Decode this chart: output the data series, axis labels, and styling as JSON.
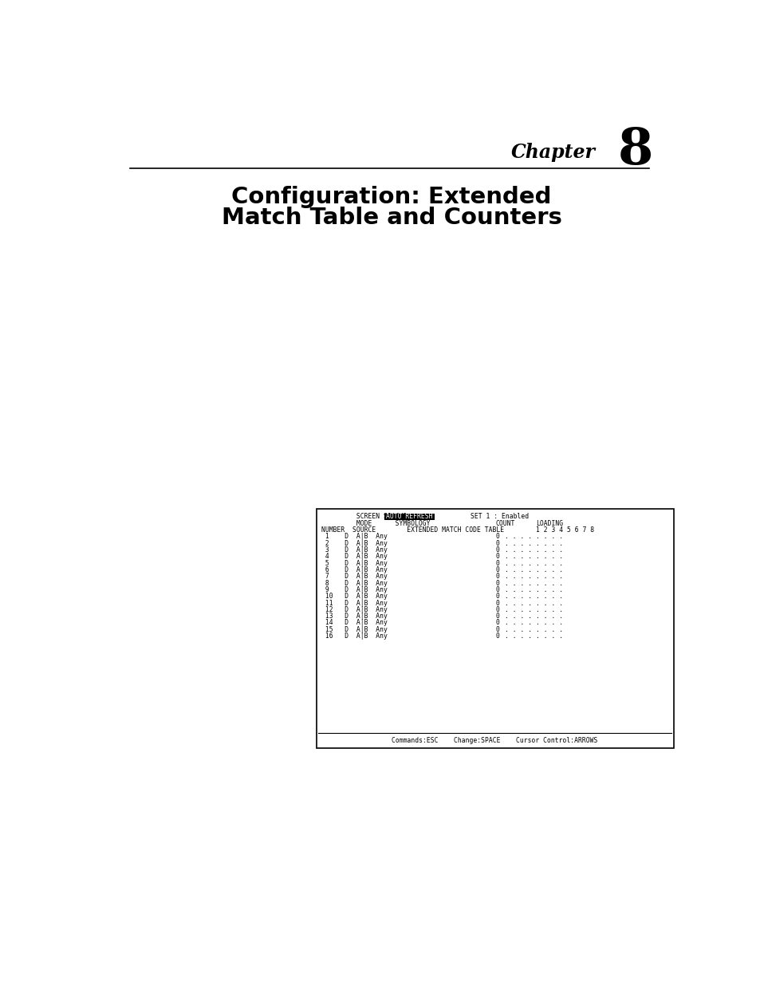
{
  "chapter_label": "Chapter",
  "chapter_number": "8",
  "title_line1": "Configuration: Extended",
  "title_line2": "Match Table and Counters",
  "screen_status_value": "AUTO REFRESH",
  "set1_label": "SET 1 : Enabled",
  "col_count": "COUNT",
  "col_loading": "LOADING",
  "col_nums": "1 2 3 4 5 6 7 8",
  "rows": 16,
  "row_mode": "D",
  "row_source": "A|B",
  "row_sym": "Any",
  "row_count": "0",
  "row_dots": ". . . . . . . .",
  "commands_text": "Commands:ESC    Change:SPACE    Cursor Control:ARROWS",
  "bg_color": "#ffffff",
  "box_bg": "#ffffff",
  "box_border": "#000000",
  "highlight_bg": "#000000",
  "highlight_fg": "#ffffff",
  "text_color": "#000000",
  "mono_font": "monospace"
}
